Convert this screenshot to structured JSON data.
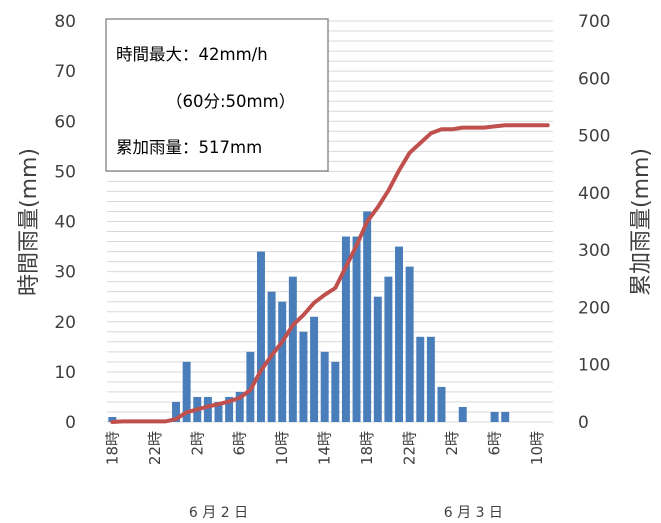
{
  "chart_data": {
    "type": "bar",
    "x": [
      "18時",
      "19時",
      "20時",
      "21時",
      "22時",
      "23時",
      "0時",
      "1時",
      "2時",
      "3時",
      "4時",
      "5時",
      "6時",
      "7時",
      "8時",
      "9時",
      "10時",
      "11時",
      "12時",
      "13時",
      "14時",
      "15時",
      "16時",
      "17時",
      "18時",
      "19時",
      "20時",
      "21時",
      "22時",
      "23時",
      "0時",
      "1時",
      "2時",
      "3時",
      "4時",
      "5時",
      "6時",
      "7時",
      "8時",
      "9時",
      "10時",
      "11時"
    ],
    "tick_labels": [
      "18時",
      "22時",
      "2時",
      "6時",
      "10時",
      "14時",
      "18時",
      "22時",
      "2時",
      "6時",
      "10時"
    ],
    "tick_every": 4,
    "date_labels": [
      {
        "text": "6 月 2 日",
        "index": 10
      },
      {
        "text": "6 月 3 日",
        "index": 34
      }
    ],
    "series": [
      {
        "type": "bar",
        "axis": "left",
        "color": "#4a7ebb",
        "values": [
          1,
          0,
          0,
          0,
          0,
          0,
          4,
          12,
          5,
          5,
          4,
          5,
          6,
          14,
          34,
          26,
          24,
          29,
          18,
          21,
          14,
          12,
          37,
          37,
          42,
          25,
          29,
          35,
          31,
          17,
          17,
          7,
          0,
          3,
          0,
          0,
          2,
          2,
          0,
          0,
          0,
          0
        ]
      },
      {
        "type": "line",
        "axis": "right",
        "color": "#c0504d",
        "values": [
          0,
          1,
          1,
          1,
          1,
          1,
          5,
          17,
          22,
          27,
          31,
          36,
          42,
          56,
          90,
          116,
          140,
          169,
          187,
          208,
          222,
          234,
          271,
          308,
          350,
          375,
          404,
          439,
          470,
          487,
          504,
          511,
          511,
          514,
          514,
          514,
          516,
          518,
          518,
          518,
          518,
          518
        ]
      }
    ],
    "ylim": [
      0,
      80
    ],
    "yticks": [
      0,
      10,
      20,
      30,
      40,
      50,
      60,
      70,
      80
    ],
    "y2lim": [
      0,
      700
    ],
    "y2ticks": [
      0,
      100,
      200,
      300,
      400,
      500,
      600,
      700
    ],
    "ylabel": "時間雨量(mm)",
    "y2label": "累加雨量(mm)",
    "grid": true,
    "annotation": {
      "line1": "時間最大：42mm/h",
      "line2": "（60分:50mm）",
      "line3": "累加雨量：517mm"
    }
  }
}
